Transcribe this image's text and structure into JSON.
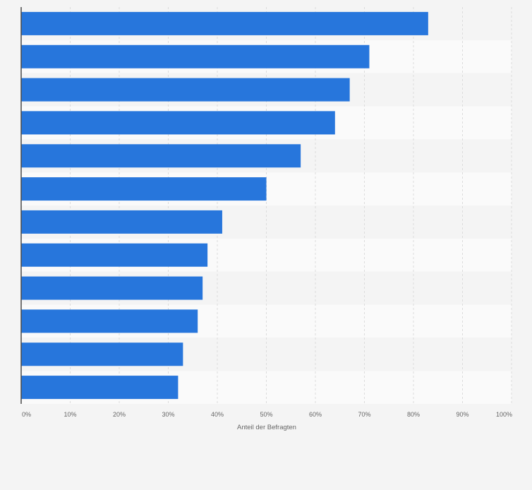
{
  "chart_data": {
    "type": "bar",
    "orientation": "horizontal",
    "title": "",
    "xlabel": "Anteil der Befragten",
    "ylabel": "",
    "xlim": [
      0,
      100
    ],
    "x_ticks": [
      "0%",
      "10%",
      "20%",
      "30%",
      "40%",
      "50%",
      "60%",
      "70%",
      "80%",
      "90%",
      "100%"
    ],
    "categories": [
      "",
      "",
      "",
      "",
      "",
      "",
      "",
      "",
      "",
      "",
      "",
      ""
    ],
    "values": [
      83,
      71,
      67,
      64,
      57,
      50,
      41,
      38,
      37,
      36,
      33,
      32
    ],
    "value_unit": "%",
    "grid": true,
    "colors": {
      "bar": "#2776dc",
      "band_dark": "#f4f4f4",
      "band_light": "#fafafa",
      "grid": "#dcdcdc",
      "axis": "#4a4a4a",
      "tick_text": "#666666"
    }
  }
}
